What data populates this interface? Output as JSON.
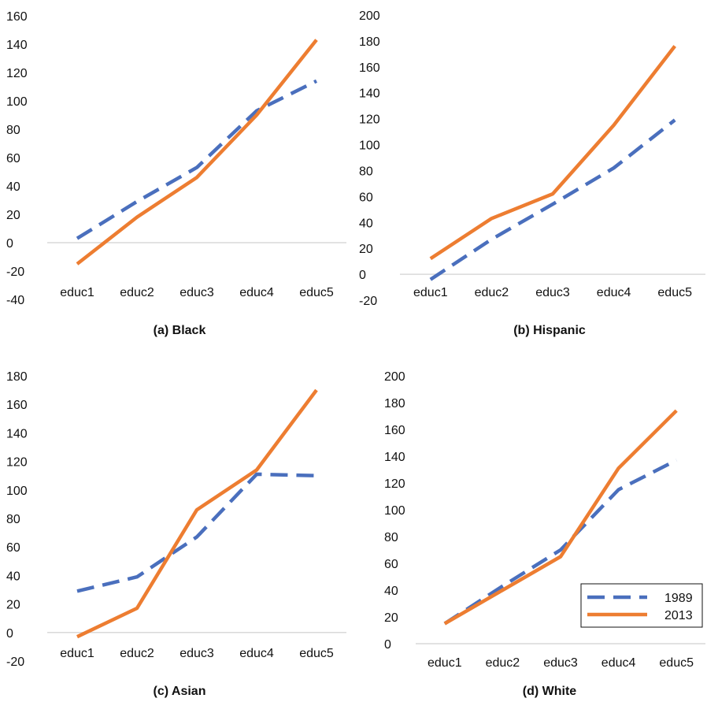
{
  "chart_data": [
    {
      "type": "line",
      "caption": "(a) Black",
      "categories": [
        "educ1",
        "educ2",
        "educ3",
        "educ4",
        "educ5"
      ],
      "ylim": [
        -40,
        160
      ],
      "yticks": [
        -40,
        -20,
        0,
        20,
        40,
        60,
        80,
        100,
        120,
        140,
        160
      ],
      "series": [
        {
          "name": "1989",
          "values": [
            3,
            29,
            53,
            93,
            114
          ],
          "color": "#4a6fbd",
          "dash": true
        },
        {
          "name": "2013",
          "values": [
            -15,
            18,
            46,
            90,
            143
          ],
          "color": "#ed7d31",
          "dash": false
        }
      ]
    },
    {
      "type": "line",
      "caption": "(b) Hispanic",
      "categories": [
        "educ1",
        "educ2",
        "educ3",
        "educ4",
        "educ5"
      ],
      "ylim": [
        -20,
        200
      ],
      "yticks": [
        -20,
        0,
        20,
        40,
        60,
        80,
        100,
        120,
        140,
        160,
        180,
        200
      ],
      "series": [
        {
          "name": "1989",
          "values": [
            -4,
            27,
            54,
            82,
            119
          ],
          "color": "#4a6fbd",
          "dash": true
        },
        {
          "name": "2013",
          "values": [
            12,
            43,
            62,
            115,
            176
          ],
          "color": "#ed7d31",
          "dash": false
        }
      ]
    },
    {
      "type": "line",
      "caption": "(c) Asian",
      "categories": [
        "educ1",
        "educ2",
        "educ3",
        "educ4",
        "educ5"
      ],
      "ylim": [
        -20,
        180
      ],
      "yticks": [
        -20,
        0,
        20,
        40,
        60,
        80,
        100,
        120,
        140,
        160,
        180
      ],
      "series": [
        {
          "name": "1989",
          "values": [
            29,
            39,
            67,
            111,
            110
          ],
          "color": "#4a6fbd",
          "dash": true
        },
        {
          "name": "2013",
          "values": [
            -3,
            17,
            86,
            114,
            170
          ],
          "color": "#ed7d31",
          "dash": false
        }
      ]
    },
    {
      "type": "line",
      "caption": "(d) White",
      "categories": [
        "educ1",
        "educ2",
        "educ3",
        "educ4",
        "educ5"
      ],
      "ylim": [
        0,
        200
      ],
      "yticks": [
        0,
        20,
        40,
        60,
        80,
        100,
        120,
        140,
        160,
        180,
        200
      ],
      "legend": "bottom-right",
      "series": [
        {
          "name": "1989",
          "values": [
            15,
            43,
            70,
            115,
            137
          ],
          "color": "#4a6fbd",
          "dash": true
        },
        {
          "name": "2013",
          "values": [
            15,
            40,
            65,
            131,
            174
          ],
          "color": "#ed7d31",
          "dash": false
        }
      ]
    }
  ]
}
